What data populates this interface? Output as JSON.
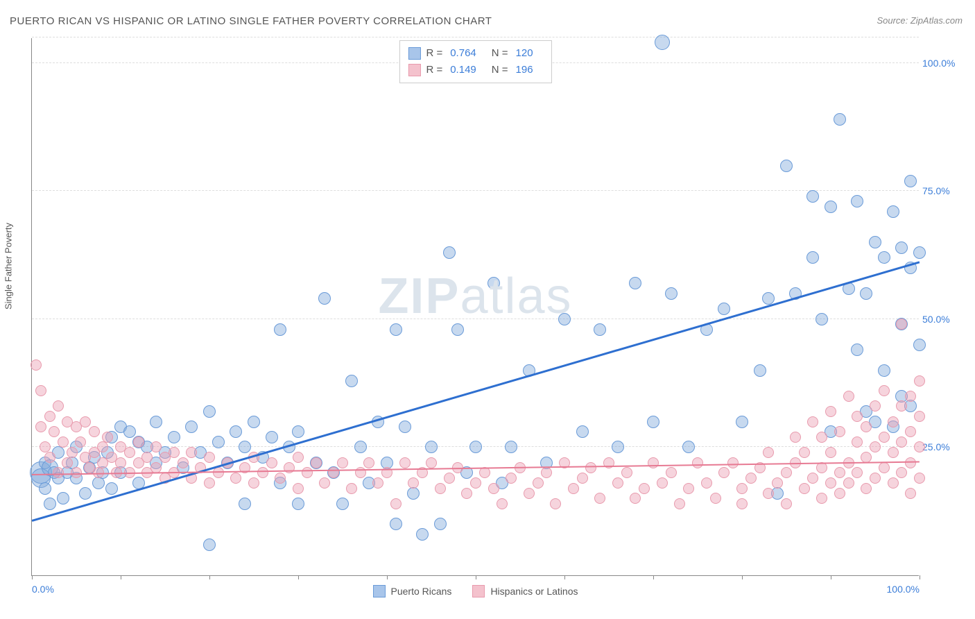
{
  "title": "PUERTO RICAN VS HISPANIC OR LATINO SINGLE FATHER POVERTY CORRELATION CHART",
  "source_prefix": "Source: ",
  "source_name": "ZipAtlas.com",
  "ylabel": "Single Father Poverty",
  "watermark_bold": "ZIP",
  "watermark_light": "atlas",
  "chart": {
    "type": "scatter",
    "xlim": [
      0,
      100
    ],
    "ylim": [
      0,
      105
    ],
    "x_ticks": [
      0,
      10,
      20,
      30,
      40,
      50,
      60,
      70,
      80,
      90,
      100
    ],
    "x_tick_labels": {
      "0": "0.0%",
      "100": "100.0%"
    },
    "y_gridlines": [
      25,
      50,
      75,
      100,
      105
    ],
    "y_tick_labels": {
      "25": "25.0%",
      "50": "50.0%",
      "75": "75.0%",
      "100": "100.0%"
    },
    "background_color": "#ffffff",
    "grid_color": "#dddddd",
    "axis_color": "#888888"
  },
  "legend_top": [
    {
      "swatch_fill": "#a8c5ea",
      "swatch_border": "#6a9bd8",
      "r_label": "R =",
      "r_value": "0.764",
      "n_label": "N =",
      "n_value": "120"
    },
    {
      "swatch_fill": "#f4c2cd",
      "swatch_border": "#e89aad",
      "r_label": "R =",
      "r_value": "0.149",
      "n_label": "N =",
      "n_value": "196"
    }
  ],
  "legend_bottom": [
    {
      "swatch_fill": "#a8c5ea",
      "swatch_border": "#6a9bd8",
      "label": "Puerto Ricans"
    },
    {
      "swatch_fill": "#f4c2cd",
      "swatch_border": "#e89aad",
      "label": "Hispanics or Latinos"
    }
  ],
  "trend_lines": [
    {
      "color": "#2e6fd0",
      "x1": 0,
      "y1": 10.5,
      "x2": 100,
      "y2": 61,
      "width": 2.5
    },
    {
      "color": "#e77a93",
      "x1": 0,
      "y1": 19.5,
      "x2": 100,
      "y2": 22,
      "width": 2
    }
  ],
  "series": [
    {
      "name": "puerto-ricans",
      "fill": "rgba(130,170,220,0.45)",
      "stroke": "#6a9bd8",
      "default_r": 9,
      "points": [
        [
          1,
          20,
          16
        ],
        [
          1,
          19,
          14
        ],
        [
          1.5,
          22
        ],
        [
          1.5,
          17
        ],
        [
          2,
          14
        ],
        [
          2,
          21,
          12
        ],
        [
          2.5,
          20
        ],
        [
          3,
          19
        ],
        [
          3,
          24
        ],
        [
          3.5,
          15
        ],
        [
          4,
          20
        ],
        [
          4.5,
          22
        ],
        [
          5,
          19
        ],
        [
          5,
          25
        ],
        [
          6,
          16
        ],
        [
          6.5,
          21
        ],
        [
          7,
          23
        ],
        [
          7.5,
          18
        ],
        [
          8,
          20
        ],
        [
          8.5,
          24
        ],
        [
          9,
          27
        ],
        [
          9,
          17
        ],
        [
          10,
          29
        ],
        [
          10,
          20
        ],
        [
          11,
          28
        ],
        [
          12,
          26
        ],
        [
          12,
          18
        ],
        [
          13,
          25
        ],
        [
          14,
          30
        ],
        [
          14,
          22
        ],
        [
          15,
          24
        ],
        [
          16,
          27
        ],
        [
          17,
          21
        ],
        [
          18,
          29
        ],
        [
          19,
          24
        ],
        [
          20,
          32
        ],
        [
          20,
          6
        ],
        [
          21,
          26
        ],
        [
          22,
          22
        ],
        [
          23,
          28
        ],
        [
          24,
          14
        ],
        [
          24,
          25
        ],
        [
          25,
          30
        ],
        [
          26,
          23
        ],
        [
          27,
          27
        ],
        [
          28,
          48
        ],
        [
          28,
          18
        ],
        [
          29,
          25
        ],
        [
          30,
          14
        ],
        [
          30,
          28
        ],
        [
          32,
          22
        ],
        [
          33,
          54
        ],
        [
          34,
          20
        ],
        [
          35,
          14
        ],
        [
          36,
          38
        ],
        [
          37,
          25
        ],
        [
          38,
          18
        ],
        [
          39,
          30
        ],
        [
          40,
          22
        ],
        [
          41,
          48
        ],
        [
          41,
          10
        ],
        [
          42,
          29
        ],
        [
          43,
          16
        ],
        [
          44,
          8
        ],
        [
          45,
          25
        ],
        [
          46,
          10
        ],
        [
          47,
          63
        ],
        [
          48,
          48
        ],
        [
          49,
          20
        ],
        [
          50,
          25
        ],
        [
          52,
          57
        ],
        [
          53,
          18
        ],
        [
          54,
          25
        ],
        [
          56,
          40
        ],
        [
          58,
          22
        ],
        [
          60,
          50
        ],
        [
          62,
          28
        ],
        [
          64,
          48
        ],
        [
          66,
          25
        ],
        [
          68,
          57
        ],
        [
          70,
          30
        ],
        [
          71,
          104,
          11
        ],
        [
          72,
          55
        ],
        [
          74,
          25
        ],
        [
          76,
          48
        ],
        [
          78,
          52
        ],
        [
          80,
          30
        ],
        [
          82,
          40
        ],
        [
          83,
          54
        ],
        [
          84,
          16
        ],
        [
          85,
          80
        ],
        [
          86,
          55
        ],
        [
          88,
          62
        ],
        [
          88,
          74
        ],
        [
          89,
          50
        ],
        [
          90,
          72
        ],
        [
          90,
          28
        ],
        [
          91,
          89
        ],
        [
          92,
          56
        ],
        [
          93,
          44
        ],
        [
          93,
          73
        ],
        [
          94,
          55
        ],
        [
          94,
          32
        ],
        [
          95,
          30
        ],
        [
          95,
          65
        ],
        [
          96,
          62
        ],
        [
          96,
          40
        ],
        [
          97,
          29
        ],
        [
          97,
          71
        ],
        [
          98,
          35
        ],
        [
          98,
          64
        ],
        [
          98,
          49
        ],
        [
          99,
          60
        ],
        [
          99,
          77
        ],
        [
          99,
          33
        ],
        [
          100,
          63
        ],
        [
          100,
          45
        ]
      ]
    },
    {
      "name": "hispanics-latinos",
      "fill": "rgba(235,160,180,0.45)",
      "stroke": "#e89aad",
      "default_r": 8,
      "points": [
        [
          0.5,
          41
        ],
        [
          1,
          36
        ],
        [
          1,
          29
        ],
        [
          1.5,
          25
        ],
        [
          2,
          31
        ],
        [
          2,
          23
        ],
        [
          2.5,
          28
        ],
        [
          3,
          20
        ],
        [
          3,
          33
        ],
        [
          3.5,
          26
        ],
        [
          4,
          22
        ],
        [
          4,
          30
        ],
        [
          4.5,
          24
        ],
        [
          5,
          29
        ],
        [
          5,
          20
        ],
        [
          5.5,
          26
        ],
        [
          6,
          23
        ],
        [
          6,
          30
        ],
        [
          6.5,
          21
        ],
        [
          7,
          28
        ],
        [
          7,
          24
        ],
        [
          7.5,
          20
        ],
        [
          8,
          25
        ],
        [
          8,
          22
        ],
        [
          8.5,
          27
        ],
        [
          9,
          23
        ],
        [
          9.5,
          20
        ],
        [
          10,
          25
        ],
        [
          10,
          22
        ],
        [
          11,
          24
        ],
        [
          11,
          20
        ],
        [
          12,
          26
        ],
        [
          12,
          22
        ],
        [
          13,
          23
        ],
        [
          13,
          20
        ],
        [
          14,
          25
        ],
        [
          14,
          21
        ],
        [
          15,
          23
        ],
        [
          15,
          19
        ],
        [
          16,
          24
        ],
        [
          16,
          20
        ],
        [
          17,
          22
        ],
        [
          18,
          24
        ],
        [
          18,
          19
        ],
        [
          19,
          21
        ],
        [
          20,
          23
        ],
        [
          20,
          18
        ],
        [
          21,
          20
        ],
        [
          22,
          22
        ],
        [
          23,
          19
        ],
        [
          24,
          21
        ],
        [
          25,
          23
        ],
        [
          25,
          18
        ],
        [
          26,
          20
        ],
        [
          27,
          22
        ],
        [
          28,
          19
        ],
        [
          29,
          21
        ],
        [
          30,
          23
        ],
        [
          30,
          17
        ],
        [
          31,
          20
        ],
        [
          32,
          22
        ],
        [
          33,
          18
        ],
        [
          34,
          20
        ],
        [
          35,
          22
        ],
        [
          36,
          17
        ],
        [
          37,
          20
        ],
        [
          38,
          22
        ],
        [
          39,
          18
        ],
        [
          40,
          20
        ],
        [
          41,
          14
        ],
        [
          42,
          22
        ],
        [
          43,
          18
        ],
        [
          44,
          20
        ],
        [
          45,
          22
        ],
        [
          46,
          17
        ],
        [
          47,
          19
        ],
        [
          48,
          21
        ],
        [
          49,
          16
        ],
        [
          50,
          18
        ],
        [
          51,
          20
        ],
        [
          52,
          17
        ],
        [
          53,
          14
        ],
        [
          54,
          19
        ],
        [
          55,
          21
        ],
        [
          56,
          16
        ],
        [
          57,
          18
        ],
        [
          58,
          20
        ],
        [
          59,
          14
        ],
        [
          60,
          22
        ],
        [
          61,
          17
        ],
        [
          62,
          19
        ],
        [
          63,
          21
        ],
        [
          64,
          15
        ],
        [
          65,
          22
        ],
        [
          66,
          18
        ],
        [
          67,
          20
        ],
        [
          68,
          15
        ],
        [
          69,
          17
        ],
        [
          70,
          22
        ],
        [
          71,
          18
        ],
        [
          72,
          20
        ],
        [
          73,
          14
        ],
        [
          74,
          17
        ],
        [
          75,
          22
        ],
        [
          76,
          18
        ],
        [
          77,
          15
        ],
        [
          78,
          20
        ],
        [
          79,
          22
        ],
        [
          80,
          17
        ],
        [
          80,
          14
        ],
        [
          81,
          19
        ],
        [
          82,
          21
        ],
        [
          83,
          16
        ],
        [
          83,
          24
        ],
        [
          84,
          18
        ],
        [
          85,
          20
        ],
        [
          85,
          14
        ],
        [
          86,
          22
        ],
        [
          86,
          27
        ],
        [
          87,
          17
        ],
        [
          87,
          24
        ],
        [
          88,
          19
        ],
        [
          88,
          30
        ],
        [
          89,
          21
        ],
        [
          89,
          15
        ],
        [
          89,
          27
        ],
        [
          90,
          18
        ],
        [
          90,
          32
        ],
        [
          90,
          24
        ],
        [
          91,
          20
        ],
        [
          91,
          28
        ],
        [
          91,
          16
        ],
        [
          92,
          22
        ],
        [
          92,
          35
        ],
        [
          92,
          18
        ],
        [
          93,
          26
        ],
        [
          93,
          31
        ],
        [
          93,
          20
        ],
        [
          94,
          23
        ],
        [
          94,
          29
        ],
        [
          94,
          17
        ],
        [
          95,
          25
        ],
        [
          95,
          33
        ],
        [
          95,
          19
        ],
        [
          96,
          27
        ],
        [
          96,
          21
        ],
        [
          96,
          36
        ],
        [
          97,
          24
        ],
        [
          97,
          30
        ],
        [
          97,
          18
        ],
        [
          98,
          26
        ],
        [
          98,
          33
        ],
        [
          98,
          20
        ],
        [
          98,
          49
        ],
        [
          99,
          28
        ],
        [
          99,
          22
        ],
        [
          99,
          35
        ],
        [
          99,
          16
        ],
        [
          100,
          25
        ],
        [
          100,
          31
        ],
        [
          100,
          19
        ],
        [
          100,
          38
        ]
      ]
    }
  ]
}
